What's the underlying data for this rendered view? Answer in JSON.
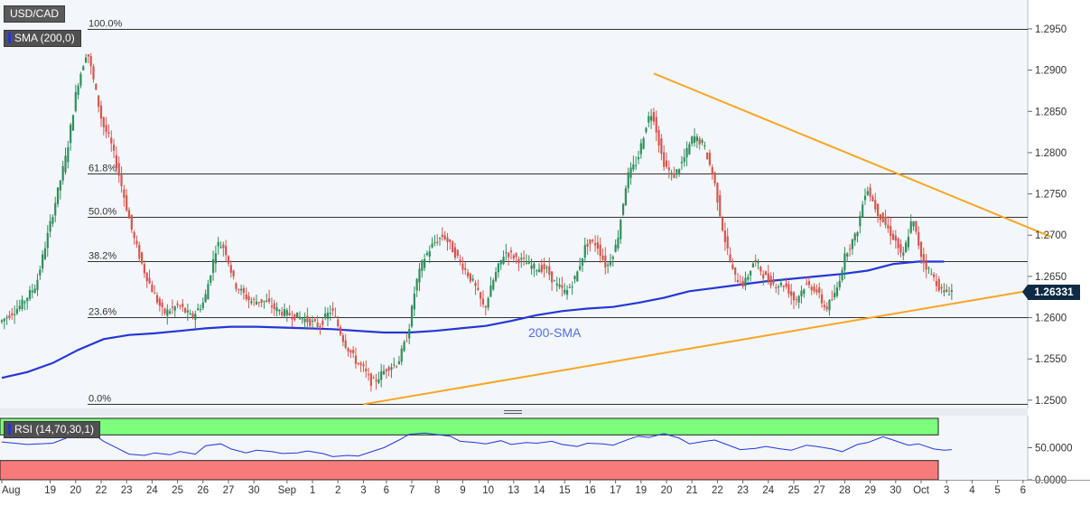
{
  "symbol": "USD/CAD",
  "indicator_label": "SMA (200,0)",
  "rsi_label": "RSI (14,70,30,1)",
  "sma_annotation": "200-SMA",
  "last_price": "1.26331",
  "colors": {
    "bull": "#2f8f5b",
    "bear": "#d5574f",
    "sma": "#2437d6",
    "trendline": "#f5a623",
    "fib": "#333333",
    "rsi_overbought": "#7dff7d",
    "rsi_oversold": "#f77b7b",
    "rsi_line": "#2437d6",
    "price_tag": "#0e2a44"
  },
  "chart_data": [
    {
      "type": "candlestick",
      "title": "USD/CAD",
      "ylim": [
        1.249,
        1.2985
      ],
      "y_ticks": [
        "1.2950",
        "1.2900",
        "1.2850",
        "1.2800",
        "1.2750",
        "1.2700",
        "1.2650",
        "1.2600",
        "1.2550",
        "1.2500"
      ],
      "y_tick_values": [
        1.295,
        1.29,
        1.285,
        1.28,
        1.275,
        1.27,
        1.265,
        1.26,
        1.255,
        1.25
      ],
      "x_ticks": [
        "Aug",
        "19",
        "20",
        "22",
        "23",
        "24",
        "25",
        "26",
        "27",
        "30",
        "Sep",
        "1",
        "2",
        "3",
        "6",
        "7",
        "8",
        "9",
        "10",
        "13",
        "14",
        "15",
        "16",
        "17",
        "19",
        "20",
        "21",
        "22",
        "23",
        "24",
        "25",
        "27",
        "28",
        "29",
        "30",
        "Oct",
        "3",
        "4",
        "5",
        "6"
      ],
      "x_tick_index": [
        0,
        19,
        29,
        39,
        49,
        59,
        69,
        79,
        89,
        99,
        112,
        122,
        132,
        142,
        151,
        161,
        171,
        181,
        191,
        201,
        211,
        221,
        231,
        241,
        251,
        261,
        271,
        281,
        291,
        301,
        311,
        321,
        331,
        341,
        351,
        361,
        371,
        381,
        391,
        401
      ],
      "grid": false,
      "fibonacci": [
        {
          "label": "100.0%",
          "price": 1.295
        },
        {
          "label": "61.8%",
          "price": 1.2775
        },
        {
          "label": "50.0%",
          "price": 1.2722
        },
        {
          "label": "38.2%",
          "price": 1.2668
        },
        {
          "label": "23.6%",
          "price": 1.2601
        },
        {
          "label": "0.0%",
          "price": 1.2495
        }
      ],
      "trendlines": [
        {
          "from": [
            142,
            1.2495
          ],
          "to": [
            402,
            1.2632
          ]
        },
        {
          "from": [
            256,
            1.2896
          ],
          "to": [
            412,
            1.2698
          ]
        }
      ],
      "sma_200": {
        "index": [
          0,
          10,
          20,
          30,
          40,
          50,
          60,
          70,
          80,
          90,
          100,
          110,
          120,
          130,
          140,
          150,
          160,
          170,
          180,
          190,
          200,
          210,
          220,
          230,
          240,
          250,
          260,
          270,
          280,
          290,
          300,
          310,
          320,
          330,
          340,
          350,
          360,
          370
        ],
        "values": [
          1.2527,
          1.2534,
          1.2545,
          1.2561,
          1.2574,
          1.2579,
          1.2581,
          1.2584,
          1.2587,
          1.2589,
          1.2589,
          1.2588,
          1.2587,
          1.2586,
          1.2584,
          1.2582,
          1.2582,
          1.2584,
          1.2587,
          1.259,
          1.2596,
          1.2603,
          1.2608,
          1.2611,
          1.2613,
          1.2618,
          1.2624,
          1.2632,
          1.2636,
          1.264,
          1.2644,
          1.2647,
          1.265,
          1.2653,
          1.2657,
          1.2665,
          1.2668,
          1.2668
        ]
      },
      "price_path": {
        "index": [
          0,
          8,
          14,
          20,
          26,
          30,
          34,
          37,
          40,
          43,
          46,
          52,
          56,
          60,
          64,
          70,
          75,
          80,
          85,
          88,
          92,
          98,
          104,
          108,
          112,
          118,
          125,
          130,
          135,
          140,
          142,
          146,
          152,
          156,
          160,
          163,
          166,
          170,
          174,
          180,
          186,
          190,
          194,
          198,
          204,
          210,
          214,
          218,
          222,
          226,
          230,
          234,
          238,
          242,
          246,
          250,
          254,
          256,
          260,
          264,
          268,
          272,
          276,
          280,
          284,
          288,
          292,
          296,
          300,
          304,
          308,
          312,
          316,
          320,
          324,
          328,
          332,
          336,
          340,
          344,
          348,
          352,
          354,
          358,
          362,
          366,
          370,
          373
        ],
        "values": [
          1.2595,
          1.2615,
          1.264,
          1.272,
          1.28,
          1.288,
          1.2925,
          1.288,
          1.2835,
          1.2815,
          1.278,
          1.27,
          1.266,
          1.263,
          1.2605,
          1.2615,
          1.26,
          1.262,
          1.269,
          1.2685,
          1.264,
          1.262,
          1.262,
          1.261,
          1.2605,
          1.26,
          1.259,
          1.261,
          1.257,
          1.2545,
          1.254,
          1.252,
          1.254,
          1.2545,
          1.258,
          1.264,
          1.267,
          1.269,
          1.27,
          1.267,
          1.264,
          1.261,
          1.265,
          1.268,
          1.267,
          1.266,
          1.266,
          1.264,
          1.263,
          1.265,
          1.269,
          1.269,
          1.266,
          1.269,
          1.277,
          1.279,
          1.284,
          1.285,
          1.279,
          1.277,
          1.279,
          1.282,
          1.281,
          1.277,
          1.27,
          1.265,
          1.264,
          1.267,
          1.265,
          1.264,
          1.264,
          1.262,
          1.264,
          1.2635,
          1.261,
          1.263,
          1.268,
          1.27,
          1.276,
          1.273,
          1.271,
          1.269,
          1.267,
          1.272,
          1.267,
          1.265,
          1.263,
          1.2633
        ]
      },
      "last_value": 1.26331
    },
    {
      "type": "line",
      "title": "RSI (14,70,30,1)",
      "ylim": [
        0,
        100
      ],
      "y_ticks": [
        "50.0000",
        "0.0000"
      ],
      "y_tick_values": [
        50,
        0
      ],
      "overbought": 70,
      "oversold": 30,
      "series": [
        {
          "index": [
            0,
            10,
            20,
            30,
            36,
            40,
            46,
            50,
            56,
            60,
            66,
            70,
            76,
            80,
            86,
            90,
            96,
            100,
            106,
            110,
            116,
            120,
            126,
            130,
            136,
            140,
            146,
            150,
            156,
            160,
            166,
            170,
            176,
            180,
            186,
            190,
            196,
            200,
            206,
            210,
            216,
            220,
            226,
            230,
            236,
            240,
            246,
            250,
            254,
            260,
            266,
            270,
            276,
            280,
            286,
            290,
            296,
            300,
            306,
            310,
            316,
            320,
            326,
            330,
            336,
            340,
            346,
            350,
            356,
            360,
            366,
            370,
            373
          ],
          "values": [
            59,
            55,
            57,
            72,
            71,
            60,
            48,
            40,
            38,
            42,
            39,
            44,
            40,
            53,
            56,
            48,
            42,
            46,
            44,
            41,
            42,
            45,
            41,
            36,
            38,
            37,
            45,
            50,
            62,
            71,
            73,
            71,
            68,
            60,
            58,
            56,
            61,
            55,
            58,
            57,
            60,
            55,
            52,
            57,
            56,
            54,
            63,
            68,
            66,
            72,
            65,
            56,
            60,
            62,
            53,
            47,
            49,
            52,
            48,
            46,
            54,
            52,
            48,
            44,
            55,
            58,
            67,
            62,
            54,
            56,
            48,
            46,
            47
          ]
        }
      ]
    }
  ]
}
